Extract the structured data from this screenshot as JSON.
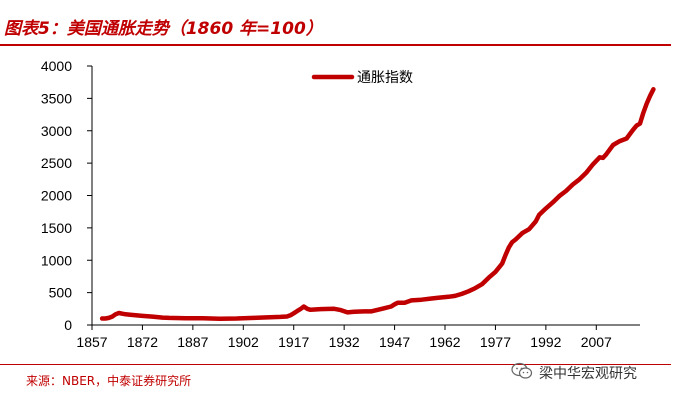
{
  "header": {
    "title": "图表5：美国通胀走势（1860 年=100）"
  },
  "footer": {
    "source": "来源：NBER，中泰证券研究所",
    "watermark": "梁中华宏观研究"
  },
  "colors": {
    "accent": "#c00000",
    "series": "#c00000"
  },
  "chart_data": {
    "type": "line",
    "title": "图表5：美国通胀走势（1860 年=100）",
    "xlabel": "",
    "ylabel": "",
    "xlim": [
      1857,
      2020
    ],
    "ylim": [
      0,
      4000
    ],
    "x_ticks": [
      1857,
      1872,
      1887,
      1902,
      1917,
      1932,
      1947,
      1962,
      1977,
      1992,
      2007
    ],
    "y_ticks": [
      0,
      500,
      1000,
      1500,
      2000,
      2500,
      3000,
      3500,
      4000
    ],
    "legend_position": "top-center",
    "series": [
      {
        "name": "通胀指数",
        "color": "#c00000",
        "points": [
          [
            1860,
            100
          ],
          [
            1861,
            100
          ],
          [
            1862,
            110
          ],
          [
            1863,
            130
          ],
          [
            1864,
            165
          ],
          [
            1865,
            185
          ],
          [
            1866,
            175
          ],
          [
            1867,
            165
          ],
          [
            1868,
            160
          ],
          [
            1870,
            150
          ],
          [
            1872,
            140
          ],
          [
            1875,
            130
          ],
          [
            1878,
            115
          ],
          [
            1880,
            110
          ],
          [
            1885,
            105
          ],
          [
            1890,
            103
          ],
          [
            1895,
            97
          ],
          [
            1900,
            100
          ],
          [
            1905,
            110
          ],
          [
            1910,
            120
          ],
          [
            1913,
            125
          ],
          [
            1915,
            132
          ],
          [
            1916,
            150
          ],
          [
            1917,
            180
          ],
          [
            1918,
            215
          ],
          [
            1919,
            245
          ],
          [
            1920,
            285
          ],
          [
            1921,
            250
          ],
          [
            1922,
            235
          ],
          [
            1925,
            245
          ],
          [
            1929,
            250
          ],
          [
            1931,
            230
          ],
          [
            1933,
            195
          ],
          [
            1935,
            205
          ],
          [
            1938,
            210
          ],
          [
            1940,
            210
          ],
          [
            1942,
            235
          ],
          [
            1944,
            260
          ],
          [
            1946,
            285
          ],
          [
            1947,
            320
          ],
          [
            1948,
            345
          ],
          [
            1950,
            345
          ],
          [
            1952,
            380
          ],
          [
            1955,
            390
          ],
          [
            1958,
            410
          ],
          [
            1960,
            420
          ],
          [
            1963,
            435
          ],
          [
            1965,
            450
          ],
          [
            1967,
            480
          ],
          [
            1969,
            520
          ],
          [
            1971,
            570
          ],
          [
            1973,
            630
          ],
          [
            1975,
            730
          ],
          [
            1977,
            820
          ],
          [
            1979,
            950
          ],
          [
            1980,
            1080
          ],
          [
            1981,
            1200
          ],
          [
            1982,
            1280
          ],
          [
            1983,
            1320
          ],
          [
            1985,
            1420
          ],
          [
            1987,
            1480
          ],
          [
            1989,
            1600
          ],
          [
            1990,
            1700
          ],
          [
            1992,
            1800
          ],
          [
            1994,
            1890
          ],
          [
            1996,
            1990
          ],
          [
            1998,
            2070
          ],
          [
            2000,
            2170
          ],
          [
            2002,
            2250
          ],
          [
            2004,
            2350
          ],
          [
            2006,
            2480
          ],
          [
            2008,
            2590
          ],
          [
            2009,
            2580
          ],
          [
            2010,
            2640
          ],
          [
            2012,
            2780
          ],
          [
            2014,
            2840
          ],
          [
            2016,
            2880
          ],
          [
            2017,
            2950
          ],
          [
            2018,
            3020
          ],
          [
            2019,
            3080
          ],
          [
            2020,
            3110
          ],
          [
            2021,
            3280
          ],
          [
            2022,
            3420
          ],
          [
            2023,
            3540
          ],
          [
            2024,
            3640
          ]
        ]
      }
    ]
  }
}
